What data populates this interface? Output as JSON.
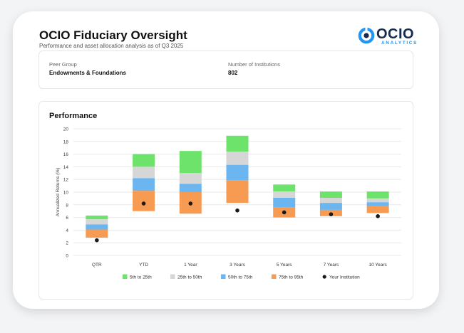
{
  "header": {
    "title": "OCIO Fiduciary Oversight",
    "subtitle": "Performance and asset allocation analysis as of Q3 2025"
  },
  "logo": {
    "word": "OCIO",
    "sub": "ANALYTICS",
    "icon": "ocio-logo-icon",
    "colors": {
      "dark": "#162a4e",
      "accent": "#2196f3"
    }
  },
  "info": {
    "peer_group_label": "Peer Group",
    "peer_group_value": "Endowments & Foundations",
    "institutions_label": "Number of Institutions",
    "institutions_value": "802"
  },
  "panel": {
    "title": "Performance"
  },
  "chart_data": {
    "type": "bar",
    "subtype": "stacked-floating-range",
    "categories": [
      "QTR",
      "YTD",
      "1 Year",
      "3 Years",
      "5 Years",
      "7 Years",
      "10 Years"
    ],
    "ylabel": "Annualized Returns (%)",
    "ylim": [
      0,
      20
    ],
    "yticks": [
      0,
      2,
      4,
      6,
      8,
      10,
      12,
      14,
      16,
      18,
      20
    ],
    "grid": true,
    "legend_position": "bottom",
    "bands": [
      {
        "name": "5th to 25th",
        "color": "#6ee36b",
        "lower": [
          5.7,
          14.0,
          13.0,
          16.4,
          10.1,
          9.1,
          9.0
        ],
        "upper": [
          6.3,
          16.0,
          16.5,
          18.9,
          11.2,
          10.1,
          10.1
        ]
      },
      {
        "name": "25th to 50th",
        "color": "#d6d6d6",
        "lower": [
          4.9,
          12.2,
          11.3,
          14.3,
          9.1,
          8.3,
          8.4
        ],
        "upper": [
          5.7,
          14.0,
          13.0,
          16.4,
          10.1,
          9.1,
          9.0
        ]
      },
      {
        "name": "50th to 75th",
        "color": "#6bb6f0",
        "lower": [
          4.1,
          10.2,
          10.0,
          11.9,
          7.6,
          7.2,
          7.8
        ],
        "upper": [
          4.9,
          12.2,
          11.3,
          14.3,
          9.1,
          8.3,
          8.4
        ]
      },
      {
        "name": "75th to 95th",
        "color": "#f89b52",
        "lower": [
          2.8,
          7.0,
          6.6,
          8.3,
          6.0,
          6.2,
          6.7
        ],
        "upper": [
          4.1,
          10.2,
          10.0,
          11.9,
          7.6,
          7.2,
          7.8
        ]
      }
    ],
    "institution": {
      "name": "Your Institution",
      "color": "#1a1a1a",
      "values": [
        2.4,
        8.2,
        8.2,
        7.1,
        6.8,
        6.5,
        6.2
      ]
    }
  }
}
